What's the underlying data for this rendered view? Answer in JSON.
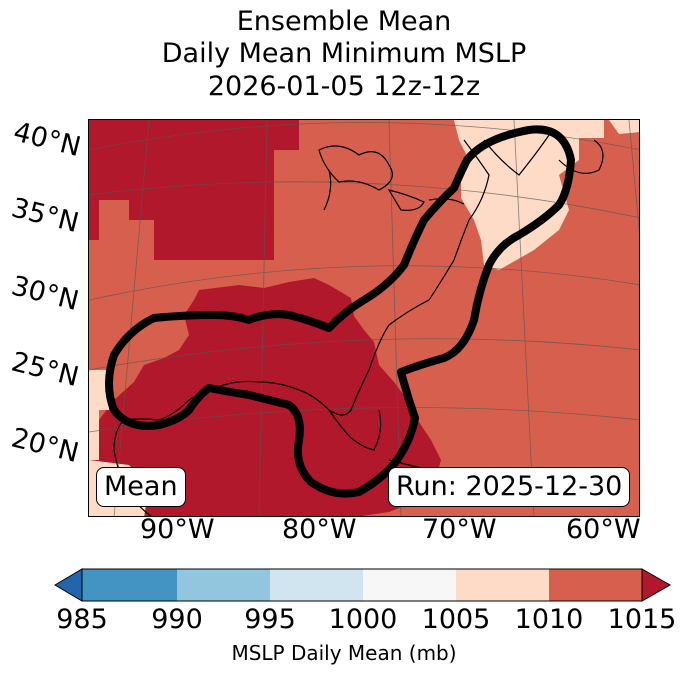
{
  "title": {
    "line1": "Ensemble Mean",
    "line2": "Daily Mean Minimum MSLP",
    "line3": "2026-01-05 12z-12z"
  },
  "map": {
    "lat_labels": [
      "40°N",
      "35°N",
      "30°N",
      "25°N",
      "20°N"
    ],
    "lon_labels": [
      "90°W",
      "80°W",
      "70°W",
      "60°W"
    ],
    "mean_label": "Mean",
    "run_label": "Run: 2025-12-30"
  },
  "colorbar": {
    "ticks": [
      "985",
      "990",
      "995",
      "1000",
      "1005",
      "1010",
      "1015"
    ],
    "label": "MSLP Daily Mean (mb)",
    "colors": [
      "#2166ac",
      "#4393c3",
      "#92c5de",
      "#d1e5f0",
      "#f7f7f7",
      "#fddbc7",
      "#d6604d",
      "#b2182b"
    ]
  }
}
